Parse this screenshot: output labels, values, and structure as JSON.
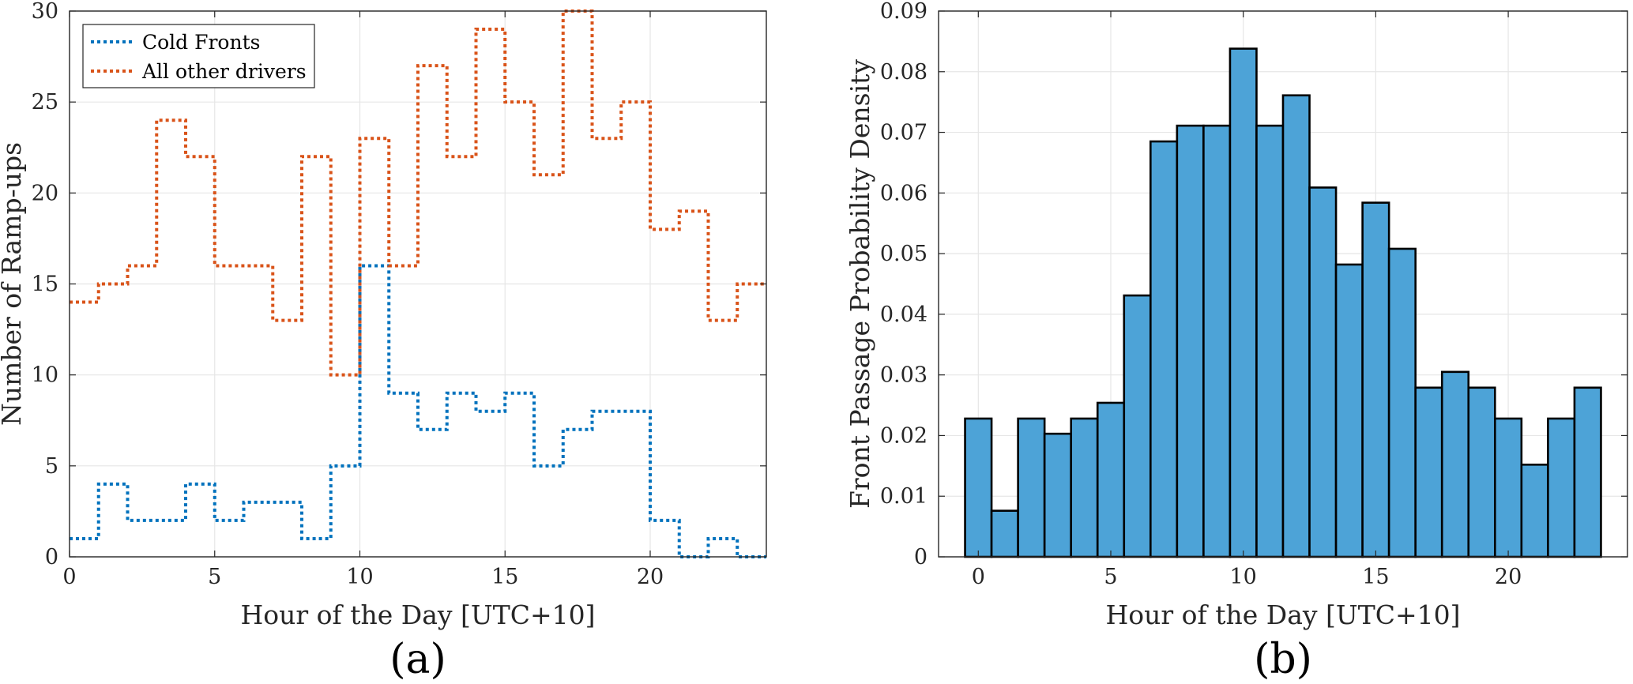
{
  "chart_data": [
    {
      "type": "line",
      "style": "stairs",
      "panel_label": "(a)",
      "title": "",
      "xlabel": "Hour of the Day [UTC+10]",
      "ylabel": "Number of Ramp-ups",
      "xlim": [
        0,
        24
      ],
      "ylim": [
        0,
        30
      ],
      "xticks": [
        0,
        5,
        10,
        15,
        20
      ],
      "yticks": [
        0,
        5,
        10,
        15,
        20,
        25,
        30
      ],
      "grid": true,
      "legend_position": "top-left",
      "x": [
        0,
        1,
        2,
        3,
        4,
        5,
        6,
        7,
        8,
        9,
        10,
        11,
        12,
        13,
        14,
        15,
        16,
        17,
        18,
        19,
        20,
        21,
        22,
        23
      ],
      "series": [
        {
          "name": "Cold Fronts",
          "color": "#0072BD",
          "values": [
            1,
            4,
            2,
            2,
            4,
            2,
            3,
            3,
            1,
            5,
            16,
            9,
            7,
            9,
            8,
            9,
            5,
            7,
            8,
            8,
            2,
            0,
            1,
            0
          ]
        },
        {
          "name": "All other drivers",
          "color": "#D95319",
          "values": [
            14,
            15,
            16,
            24,
            22,
            16,
            16,
            13,
            22,
            10,
            23,
            16,
            27,
            22,
            29,
            25,
            21,
            30,
            23,
            25,
            18,
            19,
            13,
            15
          ]
        }
      ]
    },
    {
      "type": "bar",
      "style": "histogram",
      "panel_label": "(b)",
      "title": "",
      "xlabel": "Hour of the Day [UTC+10]",
      "ylabel": "Front Passage Probability Density",
      "xlim": [
        -1.5,
        24.5
      ],
      "ylim": [
        0,
        0.09
      ],
      "xticks": [
        0,
        5,
        10,
        15,
        20
      ],
      "yticks": [
        0,
        0.01,
        0.02,
        0.03,
        0.04,
        0.05,
        0.06,
        0.07,
        0.08,
        0.09
      ],
      "ytick_labels": [
        "0",
        "0.01",
        "0.02",
        "0.03",
        "0.04",
        "0.05",
        "0.06",
        "0.07",
        "0.08",
        "0.09"
      ],
      "grid": true,
      "bar_color": "#4DA3D7",
      "categories": [
        0,
        1,
        2,
        3,
        4,
        5,
        6,
        7,
        8,
        9,
        10,
        11,
        12,
        13,
        14,
        15,
        16,
        17,
        18,
        19,
        20,
        21,
        22,
        23
      ],
      "values": [
        0.0228,
        0.0076,
        0.0228,
        0.0203,
        0.0228,
        0.0254,
        0.0431,
        0.0685,
        0.0711,
        0.0711,
        0.0838,
        0.0711,
        0.0761,
        0.0609,
        0.0482,
        0.0584,
        0.0508,
        0.0279,
        0.0305,
        0.0279,
        0.0228,
        0.0152,
        0.0228,
        0.0279
      ]
    }
  ]
}
